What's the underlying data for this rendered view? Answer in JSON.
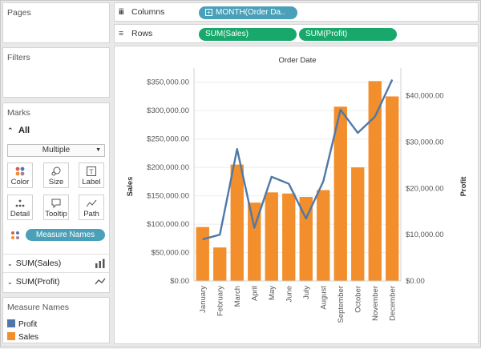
{
  "pages": {
    "title": "Pages"
  },
  "filters": {
    "title": "Filters"
  },
  "marks": {
    "title": "Marks",
    "all_label": "All",
    "mark_type": "Multiple",
    "buttons": [
      {
        "label": "Color",
        "icon": "color-dots-icon"
      },
      {
        "label": "Size",
        "icon": "size-icon"
      },
      {
        "label": "Label",
        "icon": "label-icon"
      },
      {
        "label": "Detail",
        "icon": "detail-icon"
      },
      {
        "label": "Tooltip",
        "icon": "tooltip-icon"
      },
      {
        "label": "Path",
        "icon": "path-icon"
      }
    ],
    "color_pill": "Measure Names",
    "sub_cards": [
      {
        "label": "SUM(Sales)",
        "icon": "bar-icon"
      },
      {
        "label": "SUM(Profit)",
        "icon": "line-icon"
      }
    ]
  },
  "legend": {
    "title": "Measure Names",
    "items": [
      {
        "label": "Profit",
        "color": "#4e79a7"
      },
      {
        "label": "Sales",
        "color": "#f28e2b"
      }
    ]
  },
  "shelves": {
    "columns_label": "Columns",
    "columns_pill": "MONTH(Order Da..",
    "rows_label": "Rows",
    "rows_pills": [
      "SUM(Sales)",
      "SUM(Profit)"
    ]
  },
  "chart_data": {
    "type": "bar",
    "title": "Order Date",
    "categories": [
      "January",
      "February",
      "March",
      "April",
      "May",
      "June",
      "July",
      "August",
      "September",
      "October",
      "November",
      "December"
    ],
    "series": [
      {
        "name": "Sales",
        "type": "bar",
        "axis": "left",
        "color": "#f28e2b",
        "values": [
          95000,
          59000,
          205000,
          138000,
          156000,
          154000,
          148000,
          160000,
          307000,
          200000,
          352000,
          325000
        ]
      },
      {
        "name": "Profit",
        "type": "line",
        "axis": "right",
        "color": "#4e79a7",
        "values": [
          9000,
          10000,
          28500,
          11500,
          22500,
          21000,
          13500,
          21500,
          37000,
          32000,
          35500,
          43500
        ]
      }
    ],
    "ylabel": "Sales",
    "ylabel_right": "Profit",
    "ylim": [
      0,
      375000
    ],
    "ylim_right": [
      0,
      46000
    ],
    "yticks": [
      "$0.00",
      "$50,000.00",
      "$100,000.00",
      "$150,000.00",
      "$200,000.00",
      "$250,000.00",
      "$300,000.00",
      "$350,000.00"
    ],
    "yticks_right": [
      "$0.00",
      "$10,000.00",
      "$20,000.00",
      "$30,000.00",
      "$40,000.00"
    ],
    "ytick_values": [
      0,
      50000,
      100000,
      150000,
      200000,
      250000,
      300000,
      350000
    ],
    "ytick_values_right": [
      0,
      10000,
      20000,
      30000,
      40000
    ],
    "grid": true
  }
}
